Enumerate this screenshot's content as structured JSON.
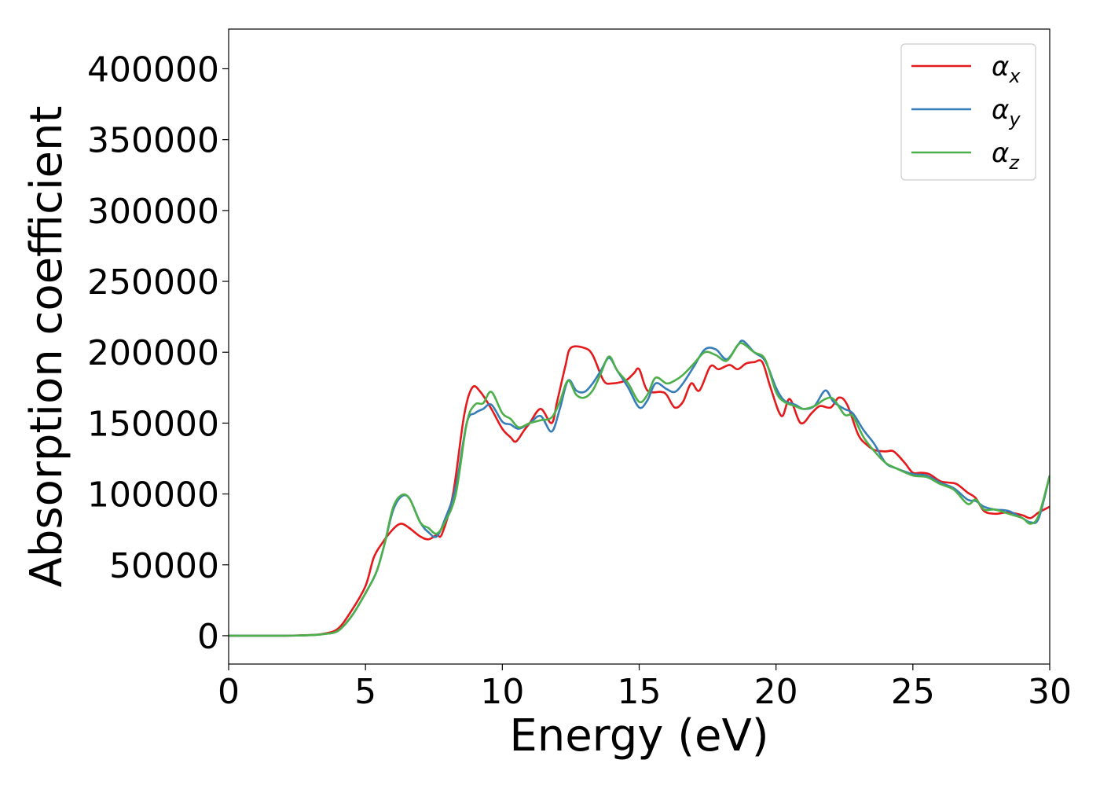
{
  "chart_data": {
    "type": "line",
    "xlabel": "Energy (eV)",
    "ylabel": "Absorption coefficient",
    "xlim": [
      0,
      30
    ],
    "ylim": [
      -20000,
      428000
    ],
    "x_ticks": [
      0,
      5,
      10,
      15,
      20,
      25,
      30
    ],
    "y_ticks": [
      0,
      50000,
      100000,
      150000,
      200000,
      250000,
      300000,
      350000,
      400000
    ],
    "grid": false,
    "legend": {
      "placement": "top-right",
      "entries": [
        {
          "symbol": "α",
          "subscript": "x"
        },
        {
          "symbol": "α",
          "subscript": "y"
        },
        {
          "symbol": "α",
          "subscript": "z"
        }
      ]
    },
    "series": [
      {
        "color": "#e41a1c",
        "legend_index": 0,
        "points": [
          [
            0,
            0
          ],
          [
            2,
            0
          ],
          [
            3,
            500
          ],
          [
            3.5,
            1500
          ],
          [
            4,
            5000
          ],
          [
            4.5,
            18000
          ],
          [
            5,
            35000
          ],
          [
            5.3,
            55000
          ],
          [
            5.6,
            65000
          ],
          [
            6,
            75000
          ],
          [
            6.3,
            79000
          ],
          [
            6.6,
            76000
          ],
          [
            7,
            70000
          ],
          [
            7.3,
            68000
          ],
          [
            7.6,
            71000
          ],
          [
            7.8,
            72000
          ],
          [
            8.2,
            100000
          ],
          [
            8.6,
            155000
          ],
          [
            8.9,
            175000
          ],
          [
            9.2,
            172000
          ],
          [
            9.6,
            160000
          ],
          [
            10,
            146000
          ],
          [
            10.3,
            140000
          ],
          [
            10.5,
            137000
          ],
          [
            10.8,
            145000
          ],
          [
            11,
            150000
          ],
          [
            11.4,
            160000
          ],
          [
            11.8,
            150000
          ],
          [
            12,
            165000
          ],
          [
            12.3,
            190000
          ],
          [
            12.5,
            203000
          ],
          [
            13,
            203000
          ],
          [
            13.3,
            198000
          ],
          [
            13.7,
            180000
          ],
          [
            14,
            178000
          ],
          [
            14.5,
            180000
          ],
          [
            14.8,
            185000
          ],
          [
            15,
            188000
          ],
          [
            15.3,
            173000
          ],
          [
            15.8,
            172000
          ],
          [
            16,
            170000
          ],
          [
            16.3,
            161000
          ],
          [
            16.6,
            165000
          ],
          [
            16.9,
            178000
          ],
          [
            17.2,
            173000
          ],
          [
            17.6,
            190000
          ],
          [
            17.9,
            188000
          ],
          [
            18.3,
            191000
          ],
          [
            18.6,
            188000
          ],
          [
            18.9,
            192000
          ],
          [
            19.2,
            193000
          ],
          [
            19.5,
            193000
          ],
          [
            19.8,
            175000
          ],
          [
            20.2,
            155000
          ],
          [
            20.5,
            167000
          ],
          [
            20.9,
            150000
          ],
          [
            21.3,
            157000
          ],
          [
            21.6,
            162000
          ],
          [
            22,
            161000
          ],
          [
            22.3,
            168000
          ],
          [
            22.6,
            163000
          ],
          [
            23,
            142000
          ],
          [
            23.3,
            135000
          ],
          [
            23.6,
            131000
          ],
          [
            24,
            130000
          ],
          [
            24.3,
            130000
          ],
          [
            24.7,
            122000
          ],
          [
            25,
            115000
          ],
          [
            25.3,
            115000
          ],
          [
            25.6,
            114000
          ],
          [
            26,
            109000
          ],
          [
            26.3,
            108000
          ],
          [
            26.6,
            107000
          ],
          [
            27,
            101000
          ],
          [
            27.3,
            97000
          ],
          [
            27.6,
            88000
          ],
          [
            28,
            86000
          ],
          [
            28.5,
            87000
          ],
          [
            29,
            85000
          ],
          [
            29.3,
            83000
          ],
          [
            29.6,
            87000
          ],
          [
            30,
            91000
          ]
        ]
      },
      {
        "color": "#377eb8",
        "legend_index": 1,
        "points": [
          [
            0,
            0
          ],
          [
            2,
            0
          ],
          [
            3,
            400
          ],
          [
            3.5,
            1200
          ],
          [
            4,
            3500
          ],
          [
            4.5,
            14000
          ],
          [
            5,
            30000
          ],
          [
            5.4,
            45000
          ],
          [
            5.7,
            65000
          ],
          [
            6,
            88000
          ],
          [
            6.3,
            98000
          ],
          [
            6.6,
            97000
          ],
          [
            7,
            80000
          ],
          [
            7.3,
            73000
          ],
          [
            7.6,
            70000
          ],
          [
            7.9,
            82000
          ],
          [
            8.3,
            105000
          ],
          [
            8.7,
            150000
          ],
          [
            9,
            157000
          ],
          [
            9.3,
            160000
          ],
          [
            9.6,
            163000
          ],
          [
            10,
            151000
          ],
          [
            10.3,
            149000
          ],
          [
            10.6,
            146000
          ],
          [
            11,
            150000
          ],
          [
            11.4,
            155000
          ],
          [
            11.8,
            144000
          ],
          [
            12.1,
            160000
          ],
          [
            12.4,
            180000
          ],
          [
            12.7,
            173000
          ],
          [
            13,
            172000
          ],
          [
            13.3,
            178000
          ],
          [
            13.6,
            187000
          ],
          [
            13.9,
            196000
          ],
          [
            14.2,
            187000
          ],
          [
            14.6,
            175000
          ],
          [
            15,
            161000
          ],
          [
            15.3,
            166000
          ],
          [
            15.6,
            178000
          ],
          [
            16,
            174000
          ],
          [
            16.3,
            172000
          ],
          [
            16.6,
            178000
          ],
          [
            17,
            190000
          ],
          [
            17.4,
            202000
          ],
          [
            17.8,
            202000
          ],
          [
            18.2,
            195000
          ],
          [
            18.6,
            205000
          ],
          [
            18.8,
            208000
          ],
          [
            19.2,
            200000
          ],
          [
            19.6,
            194000
          ],
          [
            20,
            175000
          ],
          [
            20.3,
            166000
          ],
          [
            20.7,
            163000
          ],
          [
            21,
            160000
          ],
          [
            21.4,
            162000
          ],
          [
            21.8,
            173000
          ],
          [
            22.1,
            165000
          ],
          [
            22.5,
            160000
          ],
          [
            22.8,
            157000
          ],
          [
            23.2,
            145000
          ],
          [
            23.6,
            135000
          ],
          [
            24,
            122000
          ],
          [
            24.4,
            118000
          ],
          [
            25,
            114000
          ],
          [
            25.5,
            113000
          ],
          [
            26,
            108000
          ],
          [
            26.5,
            104000
          ],
          [
            27,
            96000
          ],
          [
            27.3,
            95000
          ],
          [
            27.6,
            91000
          ],
          [
            28,
            89000
          ],
          [
            28.5,
            88000
          ],
          [
            29,
            83000
          ],
          [
            29.3,
            80000
          ],
          [
            29.6,
            83000
          ],
          [
            30,
            113000
          ]
        ]
      },
      {
        "color": "#4daf4a",
        "legend_index": 2,
        "points": [
          [
            0,
            0
          ],
          [
            2,
            0
          ],
          [
            3,
            400
          ],
          [
            3.5,
            1200
          ],
          [
            4,
            3500
          ],
          [
            4.5,
            14000
          ],
          [
            5,
            30000
          ],
          [
            5.4,
            45000
          ],
          [
            5.7,
            65000
          ],
          [
            6,
            90000
          ],
          [
            6.3,
            99000
          ],
          [
            6.6,
            97000
          ],
          [
            7,
            80000
          ],
          [
            7.3,
            76000
          ],
          [
            7.6,
            72000
          ],
          [
            7.9,
            80000
          ],
          [
            8.3,
            100000
          ],
          [
            8.7,
            150000
          ],
          [
            9,
            163000
          ],
          [
            9.3,
            164000
          ],
          [
            9.6,
            172000
          ],
          [
            10,
            157000
          ],
          [
            10.3,
            153000
          ],
          [
            10.6,
            147000
          ],
          [
            11,
            150000
          ],
          [
            11.4,
            152000
          ],
          [
            11.8,
            154000
          ],
          [
            12.1,
            165000
          ],
          [
            12.4,
            180000
          ],
          [
            12.7,
            170000
          ],
          [
            13,
            168000
          ],
          [
            13.3,
            173000
          ],
          [
            13.6,
            185000
          ],
          [
            13.9,
            197000
          ],
          [
            14.2,
            187000
          ],
          [
            14.6,
            178000
          ],
          [
            15,
            165000
          ],
          [
            15.3,
            170000
          ],
          [
            15.6,
            182000
          ],
          [
            16,
            178000
          ],
          [
            16.3,
            180000
          ],
          [
            16.6,
            184000
          ],
          [
            17,
            192000
          ],
          [
            17.4,
            200000
          ],
          [
            17.8,
            198000
          ],
          [
            18.2,
            194000
          ],
          [
            18.6,
            205000
          ],
          [
            18.8,
            206000
          ],
          [
            19.2,
            200000
          ],
          [
            19.6,
            195000
          ],
          [
            20,
            172000
          ],
          [
            20.3,
            165000
          ],
          [
            20.7,
            162000
          ],
          [
            21,
            160000
          ],
          [
            21.4,
            162000
          ],
          [
            21.8,
            167000
          ],
          [
            22.1,
            167000
          ],
          [
            22.5,
            156000
          ],
          [
            22.8,
            155000
          ],
          [
            23.2,
            140000
          ],
          [
            23.6,
            130000
          ],
          [
            24,
            122000
          ],
          [
            24.4,
            118000
          ],
          [
            25,
            113000
          ],
          [
            25.5,
            112000
          ],
          [
            26,
            107000
          ],
          [
            26.5,
            103000
          ],
          [
            27,
            93000
          ],
          [
            27.3,
            96000
          ],
          [
            27.6,
            89000
          ],
          [
            28,
            89000
          ],
          [
            28.5,
            86000
          ],
          [
            29,
            83000
          ],
          [
            29.3,
            79000
          ],
          [
            29.6,
            85000
          ],
          [
            30,
            113000
          ]
        ]
      }
    ]
  }
}
